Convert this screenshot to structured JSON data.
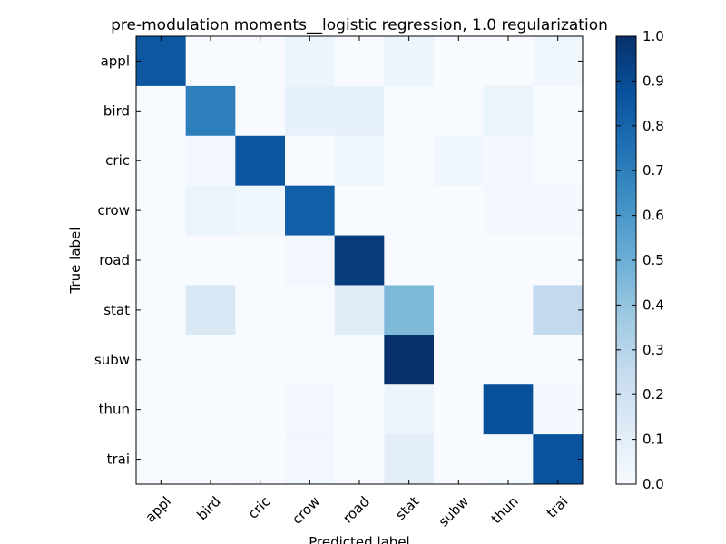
{
  "chart_data": {
    "type": "heatmap",
    "title": "pre-modulation moments__logistic regression, 1.0 regularization",
    "xlabel": "Predicted label",
    "ylabel": "True label",
    "x_categories": [
      "appl",
      "bird",
      "cric",
      "crow",
      "road",
      "stat",
      "subw",
      "thun",
      "trai"
    ],
    "y_categories": [
      "appl",
      "bird",
      "cric",
      "crow",
      "road",
      "stat",
      "subw",
      "thun",
      "trai"
    ],
    "values": [
      [
        0.85,
        0.0,
        0.0,
        0.05,
        0.0,
        0.05,
        0.0,
        0.0,
        0.04
      ],
      [
        0.0,
        0.7,
        0.0,
        0.08,
        0.08,
        0.0,
        0.0,
        0.06,
        0.0
      ],
      [
        0.0,
        0.02,
        0.86,
        0.0,
        0.04,
        0.0,
        0.04,
        0.02,
        0.0
      ],
      [
        0.0,
        0.06,
        0.04,
        0.82,
        0.0,
        0.0,
        0.0,
        0.02,
        0.02
      ],
      [
        0.0,
        0.0,
        0.0,
        0.03,
        0.96,
        0.0,
        0.0,
        0.0,
        0.0
      ],
      [
        0.0,
        0.15,
        0.0,
        0.0,
        0.12,
        0.45,
        0.0,
        0.0,
        0.26
      ],
      [
        0.0,
        0.0,
        0.0,
        0.0,
        0.0,
        1.0,
        0.0,
        0.0,
        0.0
      ],
      [
        0.0,
        0.0,
        0.0,
        0.03,
        0.0,
        0.05,
        0.0,
        0.88,
        0.02
      ],
      [
        0.0,
        0.0,
        0.0,
        0.03,
        0.0,
        0.1,
        0.0,
        0.01,
        0.87
      ]
    ],
    "colorbar": {
      "range": [
        0.0,
        1.0
      ],
      "ticks": [
        "0.0",
        "0.1",
        "0.2",
        "0.3",
        "0.4",
        "0.5",
        "0.6",
        "0.7",
        "0.8",
        "0.9",
        "1.0"
      ]
    },
    "colormap_stops": [
      "#f7fbff",
      "#deebf7",
      "#c6dbef",
      "#9ecae1",
      "#6baed6",
      "#4292c6",
      "#2171b5",
      "#08519c",
      "#08306b"
    ]
  }
}
